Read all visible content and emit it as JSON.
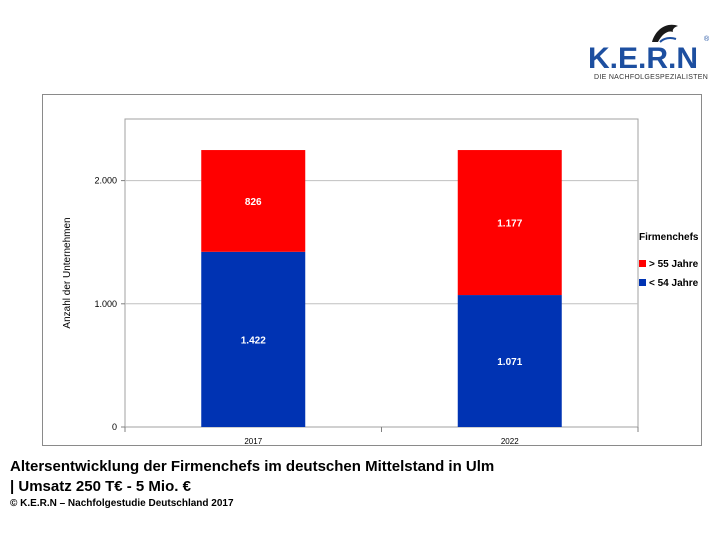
{
  "logo": {
    "text": "K.E.R.N",
    "tagline": "DIE NACHFOLGESPEZIALISTEN",
    "reg": "®"
  },
  "caption": {
    "line1": "Altersentwicklung der Firmenchefs im deutschen Mittelstand in Ulm",
    "line2": "| Umsatz 250 T€ - 5 Mio. €",
    "source": "© K.E.R.N – Nachfolgestudie Deutschland 2017"
  },
  "colors": {
    "under54": "#0033b3",
    "over55": "#ff0000",
    "grid": "#c0c0c0",
    "plot_border": "#a0a0a0"
  },
  "chart_data": {
    "type": "bar",
    "stacked": true,
    "categories": [
      "2017",
      "2022"
    ],
    "series": [
      {
        "name": "< 54 Jahre",
        "values": [
          1422,
          1071
        ],
        "labels": [
          "1.422",
          "1.071"
        ],
        "color": "#0033b3"
      },
      {
        "name": "> 55 Jahre",
        "values": [
          826,
          1177
        ],
        "labels": [
          "826",
          "1.177"
        ],
        "color": "#ff0000"
      }
    ],
    "ylabel": "Anzahl der Unternehmen",
    "xlabel": "",
    "ylim": [
      0,
      2500
    ],
    "yticks": [
      {
        "value": 0,
        "label": "0"
      },
      {
        "value": 1000,
        "label": "1.000"
      },
      {
        "value": 2000,
        "label": "2.000"
      }
    ],
    "legend": {
      "title": "Firmenchefs",
      "placement": "right",
      "order": [
        "> 55 Jahre",
        "< 54 Jahre"
      ]
    },
    "grid": true
  }
}
